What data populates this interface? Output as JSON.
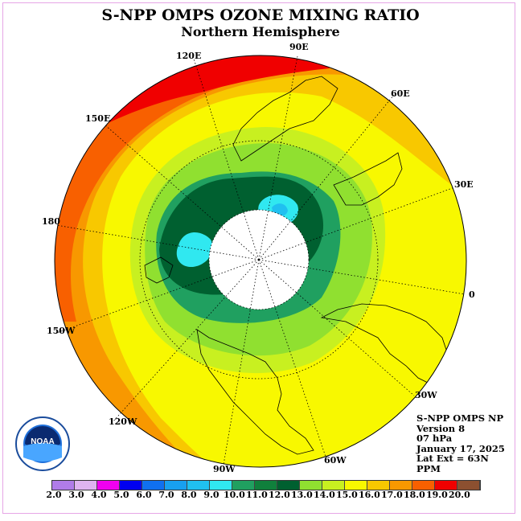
{
  "title": "S-NPP OMPS OZONE MIXING RATIO",
  "subtitle": "Northern Hemisphere",
  "longitude_labels": {
    "e90": "90E",
    "e60": "60E",
    "e30": "30E",
    "zero": "0",
    "w30": "30W",
    "w60": "60W",
    "w90": "90W",
    "w120": "120W",
    "w150": "150W",
    "d180": "180",
    "e150": "150E",
    "e120": "120E"
  },
  "info": {
    "instrument": "S-NPP OMPS NP",
    "version": "Version 8",
    "level": "07 hPa",
    "date": "January 17, 2025",
    "lat_ext": "Lat Ext = 63N",
    "units": "PPM"
  },
  "logo": {
    "text": "NOAA",
    "ring_text": "NATIONAL OCEANIC AND ATMOSPHERIC ADMINISTRATION · U.S. DEPARTMENT OF COMMERCE"
  },
  "colorbar": {
    "ticks": [
      "2.0",
      "3.0",
      "4.0",
      "5.0",
      "6.0",
      "7.0",
      "8.0",
      "9.0",
      "10.0",
      "11.0",
      "12.0",
      "13.0",
      "14.0",
      "15.0",
      "16.0",
      "17.0",
      "18.0",
      "19.0",
      "20.0"
    ],
    "colors": [
      "#b07ce8",
      "#dfb4f0",
      "#f000f0",
      "#0000f0",
      "#1070f0",
      "#18a0f0",
      "#20c0f0",
      "#30e8f0",
      "#20a060",
      "#10803c",
      "#006030",
      "#90e030",
      "#c8f020",
      "#f8f800",
      "#f8c800",
      "#f89800",
      "#f86000",
      "#f00000",
      "#8c5030"
    ]
  },
  "map": {
    "projection": "north polar stereographic",
    "hemisphere": "Northern",
    "data_gap": "polar night (no data)",
    "rings_ppm": [
      "17.0-18.0 / 18.0-19.0 (outer, Pacific sector)",
      "15.0-16.0",
      "14.0-15.0",
      "13.0-14.0",
      "12.0-13.0",
      "11.0-12.0",
      "9.0-10.0 (cores)"
    ]
  }
}
